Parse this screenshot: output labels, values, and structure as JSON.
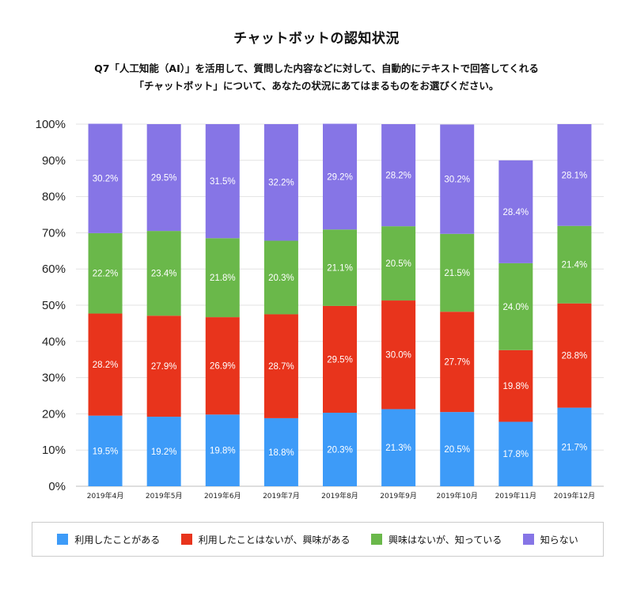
{
  "title": "チャットボットの認知状況",
  "subtitle_line1": "Q7「人工知能（AI）」を活用して、質問した内容などに対して、自動的にテキストで回答してくれる",
  "subtitle_line2": "「チャットボット」について、あなたの状況にあてはまるものをお選びください。",
  "colors": {
    "used": "#3d9bf8",
    "not_used_interested": "#e8341c",
    "interested_know": "#6ab84a",
    "unknown": "#8675e6"
  },
  "chart_data": {
    "type": "bar",
    "stacked": true,
    "categories": [
      "2019年4月",
      "2019年5月",
      "2019年6月",
      "2019年7月",
      "2019年8月",
      "2019年9月",
      "2019年10月",
      "2019年11月",
      "2019年12月"
    ],
    "series": [
      {
        "key": "used",
        "name": "利用したことがある",
        "values": [
          19.5,
          19.2,
          19.8,
          18.8,
          20.3,
          21.3,
          20.5,
          17.8,
          21.7
        ]
      },
      {
        "key": "not_used_interested",
        "name": "利用したことはないが、興味がある",
        "values": [
          28.2,
          27.9,
          26.9,
          28.7,
          29.5,
          30.0,
          27.7,
          19.8,
          28.8
        ]
      },
      {
        "key": "interested_know",
        "name": "興味はないが、知っている",
        "values": [
          22.2,
          23.4,
          21.8,
          20.3,
          21.1,
          20.5,
          21.5,
          24.0,
          21.4
        ]
      },
      {
        "key": "unknown",
        "name": "知らない",
        "values": [
          30.2,
          29.5,
          31.5,
          32.2,
          29.2,
          28.2,
          30.2,
          28.4,
          28.1
        ]
      }
    ],
    "yticks": [
      "0%",
      "10%",
      "20%",
      "30%",
      "40%",
      "50%",
      "60%",
      "70%",
      "80%",
      "90%",
      "100%"
    ],
    "ylim": [
      0,
      100
    ],
    "xlabel": "",
    "ylabel": "",
    "grid": true,
    "legend_position": "bottom"
  }
}
